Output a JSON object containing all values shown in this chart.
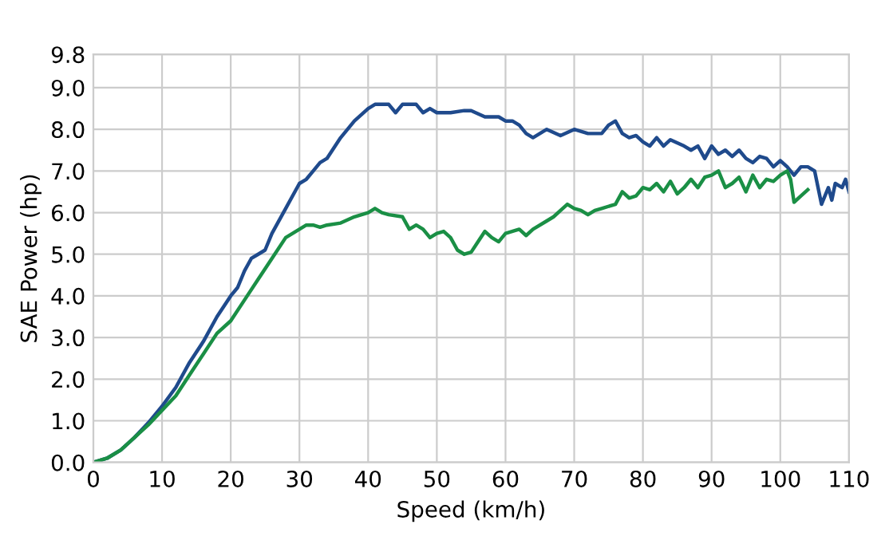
{
  "chart_data": {
    "type": "line",
    "xlabel": "Speed (km/h)",
    "ylabel": "SAE Power (hp)",
    "xlim": [
      0,
      110
    ],
    "xticks": [
      0,
      10,
      20,
      30,
      40,
      50,
      60,
      70,
      80,
      90,
      100,
      110
    ],
    "ylim": [
      0,
      9.8
    ],
    "yticks": [
      {
        "value": 0,
        "label": "0.0"
      },
      {
        "value": 1,
        "label": "1.0"
      },
      {
        "value": 2,
        "label": "2.0"
      },
      {
        "value": 3,
        "label": "3.0"
      },
      {
        "value": 4,
        "label": "4.0"
      },
      {
        "value": 5,
        "label": "5.0"
      },
      {
        "value": 6,
        "label": "6.0"
      },
      {
        "value": 7,
        "label": "7.0"
      },
      {
        "value": 8,
        "label": "8.0"
      },
      {
        "value": 9,
        "label": "9.0"
      },
      9.8
    ],
    "grid": true,
    "legend": false,
    "series": [
      {
        "color": "#1f4a8c",
        "x": [
          0,
          2,
          4,
          6,
          8,
          10,
          12,
          14,
          16,
          18,
          20,
          21,
          22,
          23,
          24,
          25,
          26,
          28,
          30,
          31,
          32,
          33,
          34,
          36,
          38,
          40,
          41,
          43,
          44,
          45,
          47,
          48,
          49,
          50,
          52,
          54,
          55,
          57,
          59,
          60,
          61,
          62,
          63,
          64,
          66,
          68,
          70,
          72,
          74,
          75,
          76,
          77,
          78,
          79,
          80,
          81,
          82,
          83,
          84,
          86,
          87,
          88,
          89,
          90,
          91,
          92,
          93,
          94,
          95,
          96,
          97,
          98,
          99,
          100,
          101,
          102,
          103,
          104,
          105,
          105.5,
          106,
          107,
          107.5,
          108,
          109,
          109.5,
          110
        ],
        "values": [
          0,
          0.1,
          0.3,
          0.6,
          0.95,
          1.35,
          1.8,
          2.4,
          2.9,
          3.5,
          4.0,
          4.2,
          4.6,
          4.9,
          5.0,
          5.1,
          5.5,
          6.1,
          6.7,
          6.8,
          7.0,
          7.2,
          7.3,
          7.8,
          8.2,
          8.5,
          8.6,
          8.6,
          8.4,
          8.6,
          8.6,
          8.4,
          8.5,
          8.4,
          8.4,
          8.45,
          8.45,
          8.3,
          8.3,
          8.2,
          8.2,
          8.1,
          7.9,
          7.8,
          8.0,
          7.85,
          8.0,
          7.9,
          7.9,
          8.1,
          8.2,
          7.9,
          7.8,
          7.85,
          7.7,
          7.6,
          7.8,
          7.6,
          7.75,
          7.6,
          7.5,
          7.6,
          7.3,
          7.6,
          7.4,
          7.5,
          7.35,
          7.5,
          7.3,
          7.2,
          7.35,
          7.3,
          7.1,
          7.25,
          7.1,
          6.9,
          7.1,
          7.1,
          7.0,
          6.6,
          6.2,
          6.6,
          6.3,
          6.7,
          6.6,
          6.8,
          6.5
        ]
      },
      {
        "color": "#1a8f45",
        "x": [
          0,
          2,
          4,
          6,
          8,
          10,
          12,
          14,
          16,
          18,
          20,
          22,
          24,
          26,
          28,
          29,
          30,
          31,
          32,
          33,
          34,
          36,
          38,
          40,
          41,
          42,
          43,
          45,
          46,
          47,
          48,
          49,
          50,
          51,
          52,
          53,
          54,
          55,
          56,
          57,
          58,
          59,
          60,
          62,
          63,
          64,
          66,
          67,
          68,
          69,
          70,
          71,
          72,
          73,
          74,
          76,
          77,
          78,
          79,
          80,
          81,
          82,
          83,
          84,
          85,
          86,
          87,
          88,
          89,
          90,
          91,
          92,
          93,
          94,
          95,
          96,
          97,
          98,
          99,
          100,
          101,
          101.5,
          102,
          103,
          104
        ],
        "values": [
          0,
          0.1,
          0.3,
          0.6,
          0.9,
          1.25,
          1.6,
          2.1,
          2.6,
          3.1,
          3.4,
          3.9,
          4.4,
          4.9,
          5.4,
          5.5,
          5.6,
          5.7,
          5.7,
          5.65,
          5.7,
          5.75,
          5.9,
          6.0,
          6.1,
          6.0,
          5.95,
          5.9,
          5.6,
          5.7,
          5.6,
          5.4,
          5.5,
          5.55,
          5.4,
          5.1,
          5.0,
          5.05,
          5.3,
          5.55,
          5.4,
          5.3,
          5.5,
          5.6,
          5.45,
          5.6,
          5.8,
          5.9,
          6.05,
          6.2,
          6.1,
          6.05,
          5.95,
          6.05,
          6.1,
          6.2,
          6.5,
          6.35,
          6.4,
          6.6,
          6.55,
          6.7,
          6.5,
          6.75,
          6.45,
          6.6,
          6.8,
          6.6,
          6.85,
          6.9,
          7.0,
          6.6,
          6.7,
          6.85,
          6.5,
          6.9,
          6.6,
          6.8,
          6.75,
          6.9,
          7.0,
          6.8,
          6.25,
          6.4,
          6.55
        ]
      }
    ]
  }
}
